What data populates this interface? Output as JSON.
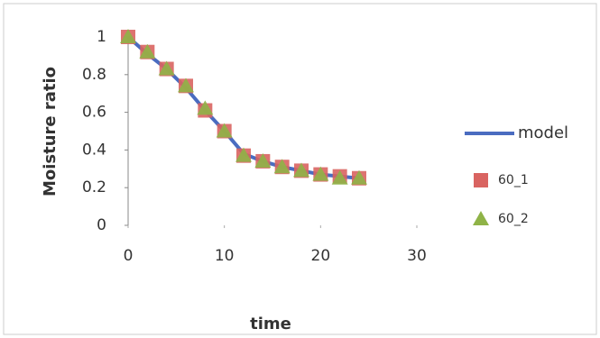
{
  "chart_data": {
    "type": "scatter",
    "x_label": "time",
    "y_label": "Moisture ratio",
    "x": [
      0,
      2,
      4,
      6,
      8,
      10,
      12,
      14,
      16,
      18,
      20,
      22,
      24
    ],
    "series": [
      {
        "name": "model",
        "color": "#4a6cc0",
        "marker": "line",
        "values": [
          1,
          0.91,
          0.83,
          0.73,
          0.61,
          0.5,
          0.38,
          0.34,
          0.31,
          0.29,
          0.27,
          0.26,
          0.25
        ]
      },
      {
        "name": "60_1",
        "color": "#d96461",
        "marker": "square",
        "values": [
          1,
          0.92,
          0.83,
          0.74,
          0.61,
          0.5,
          0.37,
          0.34,
          0.31,
          0.29,
          0.27,
          0.26,
          0.25
        ]
      },
      {
        "name": "60_2",
        "color": "#8fb347",
        "marker": "triangle",
        "values": [
          1,
          0.92,
          0.83,
          0.74,
          0.62,
          0.5,
          0.37,
          0.34,
          0.31,
          0.29,
          0.27,
          0.25,
          0.25
        ]
      }
    ],
    "xlim": [
      0,
      30
    ],
    "xticks": [
      0,
      10,
      20,
      30
    ],
    "ylim": [
      0,
      1
    ],
    "yticks": [
      0,
      0.2,
      0.4,
      0.6,
      0.8,
      1
    ],
    "grid": false
  }
}
